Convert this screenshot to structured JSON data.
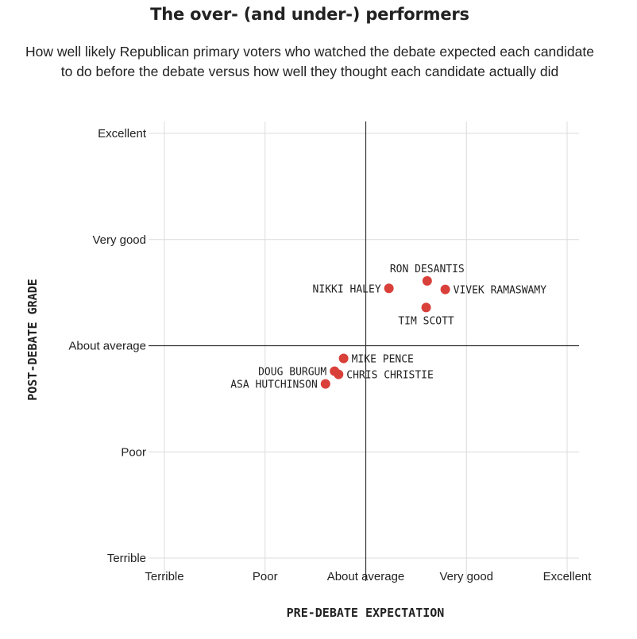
{
  "title": "The over- (and under-) performers",
  "subtitle": "How well likely Republican primary voters who watched the debate expected each candidate to do before the debate versus how well they thought each candidate actually did",
  "colors": {
    "point": "#d9403a",
    "grid": "#dcdcdc",
    "reference": "#333333"
  },
  "chart_data": {
    "type": "scatter",
    "xlabel": "PRE-DEBATE EXPECTATION",
    "ylabel": "POST-DEBATE GRADE",
    "x_ticks": [
      "Terrible",
      "Poor",
      "About average",
      "Very good",
      "Excellent"
    ],
    "y_ticks": [
      "Terrible",
      "Poor",
      "About average",
      "Very good",
      "Excellent"
    ],
    "xlim": [
      1,
      5
    ],
    "ylim": [
      1,
      5
    ],
    "grid": true,
    "reference_lines": {
      "x": 3,
      "y": 3
    },
    "points": [
      {
        "label": "RON DESANTIS",
        "x": 3.61,
        "y": 3.61,
        "label_pos": "above"
      },
      {
        "label": "NIKKI HALEY",
        "x": 3.23,
        "y": 3.54,
        "label_pos": "left"
      },
      {
        "label": "VIVEK RAMASWAMY",
        "x": 3.79,
        "y": 3.53,
        "label_pos": "right"
      },
      {
        "label": "TIM SCOTT",
        "x": 3.6,
        "y": 3.36,
        "label_pos": "below"
      },
      {
        "label": "MIKE PENCE",
        "x": 2.78,
        "y": 2.88,
        "label_pos": "right"
      },
      {
        "label": "DOUG BURGUM",
        "x": 2.69,
        "y": 2.76,
        "label_pos": "left"
      },
      {
        "label": "CHRIS CHRISTIE",
        "x": 2.73,
        "y": 2.73,
        "label_pos": "right"
      },
      {
        "label": "ASA HUTCHINSON",
        "x": 2.6,
        "y": 2.64,
        "label_pos": "left"
      }
    ]
  }
}
